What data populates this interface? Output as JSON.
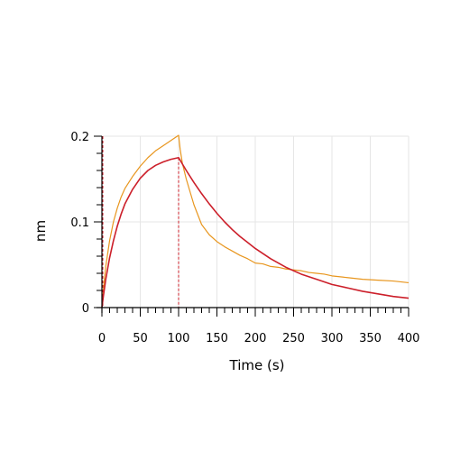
{
  "chart_data": {
    "type": "line",
    "xlabel": "Time (s)",
    "ylabel": "nm",
    "xlim": [
      0,
      400
    ],
    "ylim": [
      0,
      0.2
    ],
    "x_ticks": [
      0,
      50,
      100,
      150,
      200,
      250,
      300,
      350,
      400
    ],
    "x_tick_labels": [
      "0",
      "50",
      "100",
      "150",
      "200",
      "250",
      "300",
      "350",
      "400"
    ],
    "y_ticks": [
      0,
      0.1,
      0.2
    ],
    "y_tick_labels": [
      "0",
      "0.1",
      "0.2"
    ],
    "grid": true,
    "colors": {
      "measured": "#e8961e",
      "fit": "#cc1f2a",
      "grid": "#e6e6e6",
      "axis": "#000000"
    },
    "switch_time": 100,
    "series": [
      {
        "role": "measured",
        "x": [
          0,
          2,
          5,
          10,
          15,
          20,
          25,
          30,
          40,
          50,
          60,
          70,
          80,
          90,
          95,
          100,
          102,
          105,
          110,
          115,
          120,
          130,
          140,
          150,
          160,
          170,
          180,
          190,
          200,
          210,
          220,
          230,
          240,
          250,
          260,
          270,
          280,
          290,
          300,
          320,
          340,
          360,
          380,
          400
        ],
        "y": [
          0.002,
          0.022,
          0.048,
          0.078,
          0.1,
          0.116,
          0.129,
          0.139,
          0.153,
          0.165,
          0.175,
          0.183,
          0.189,
          0.195,
          0.198,
          0.201,
          0.185,
          0.168,
          0.15,
          0.135,
          0.12,
          0.097,
          0.085,
          0.077,
          0.071,
          0.066,
          0.061,
          0.057,
          0.052,
          0.051,
          0.048,
          0.047,
          0.045,
          0.044,
          0.043,
          0.041,
          0.04,
          0.039,
          0.037,
          0.035,
          0.033,
          0.032,
          0.031,
          0.029
        ]
      },
      {
        "role": "fit",
        "x": [
          0,
          2,
          5,
          10,
          15,
          20,
          25,
          30,
          40,
          50,
          60,
          70,
          80,
          90,
          100,
          110,
          120,
          130,
          140,
          150,
          160,
          170,
          180,
          190,
          200,
          220,
          240,
          260,
          280,
          300,
          320,
          340,
          360,
          380,
          400
        ],
        "y": [
          0.0,
          0.014,
          0.033,
          0.058,
          0.078,
          0.095,
          0.109,
          0.121,
          0.138,
          0.151,
          0.16,
          0.166,
          0.17,
          0.173,
          0.175,
          0.16,
          0.146,
          0.133,
          0.121,
          0.11,
          0.1,
          0.091,
          0.083,
          0.076,
          0.069,
          0.057,
          0.047,
          0.039,
          0.033,
          0.027,
          0.023,
          0.019,
          0.016,
          0.013,
          0.011
        ]
      }
    ]
  }
}
